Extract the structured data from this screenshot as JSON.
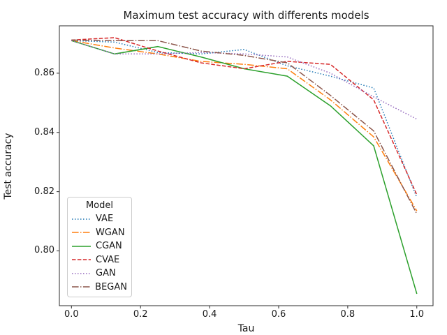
{
  "chart_data": {
    "type": "line",
    "title": "Maximum test accuracy with differents models",
    "xlabel": "Tau",
    "ylabel": "Test accuracy",
    "xlim": [
      -0.035,
      1.047
    ],
    "ylim": [
      0.7815,
      0.876
    ],
    "grid": false,
    "legend_title": "Model",
    "legend_position": "lower left",
    "x_tick_labels": [
      "0.0",
      "0.2",
      "0.4",
      "0.6",
      "0.8",
      "1.0"
    ],
    "x_ticks": [
      0.0,
      0.2,
      0.4,
      0.6,
      0.8,
      1.0
    ],
    "y_tick_labels": [
      "0.80",
      "0.82",
      "0.84",
      "0.86"
    ],
    "y_ticks": [
      0.8,
      0.82,
      0.84,
      0.86
    ],
    "x": [
      0.0,
      0.125,
      0.25,
      0.375,
      0.5,
      0.625,
      0.75,
      0.875,
      1.0
    ],
    "series": [
      {
        "name": "VAE",
        "color": "#1f77b4",
        "linestyle": "dotted",
        "values": [
          0.871,
          0.8705,
          0.867,
          0.8665,
          0.868,
          0.8625,
          0.859,
          0.855,
          0.818
        ]
      },
      {
        "name": "WGAN",
        "color": "#ff7f0e",
        "linestyle": "dashdot",
        "values": [
          0.871,
          0.8685,
          0.8665,
          0.864,
          0.863,
          0.8615,
          0.851,
          0.8385,
          0.8135
        ]
      },
      {
        "name": "CGAN",
        "color": "#2ca02c",
        "linestyle": "solid",
        "values": [
          0.871,
          0.8665,
          0.869,
          0.8655,
          0.8615,
          0.859,
          0.849,
          0.8355,
          0.7855
        ]
      },
      {
        "name": "CVAE",
        "color": "#d62728",
        "linestyle": "dashed",
        "values": [
          0.8712,
          0.872,
          0.8675,
          0.8635,
          0.8615,
          0.864,
          0.863,
          0.851,
          0.819
        ]
      },
      {
        "name": "GAN",
        "color": "#9467bd",
        "linestyle": "dotted",
        "values": [
          0.871,
          0.8665,
          0.8665,
          0.867,
          0.8665,
          0.8655,
          0.86,
          0.852,
          0.8445
        ]
      },
      {
        "name": "BEGAN",
        "color": "#8c564b",
        "linestyle": "dashdot",
        "values": [
          0.8712,
          0.871,
          0.871,
          0.8675,
          0.866,
          0.8635,
          0.8525,
          0.8405,
          0.8125
        ]
      }
    ]
  }
}
